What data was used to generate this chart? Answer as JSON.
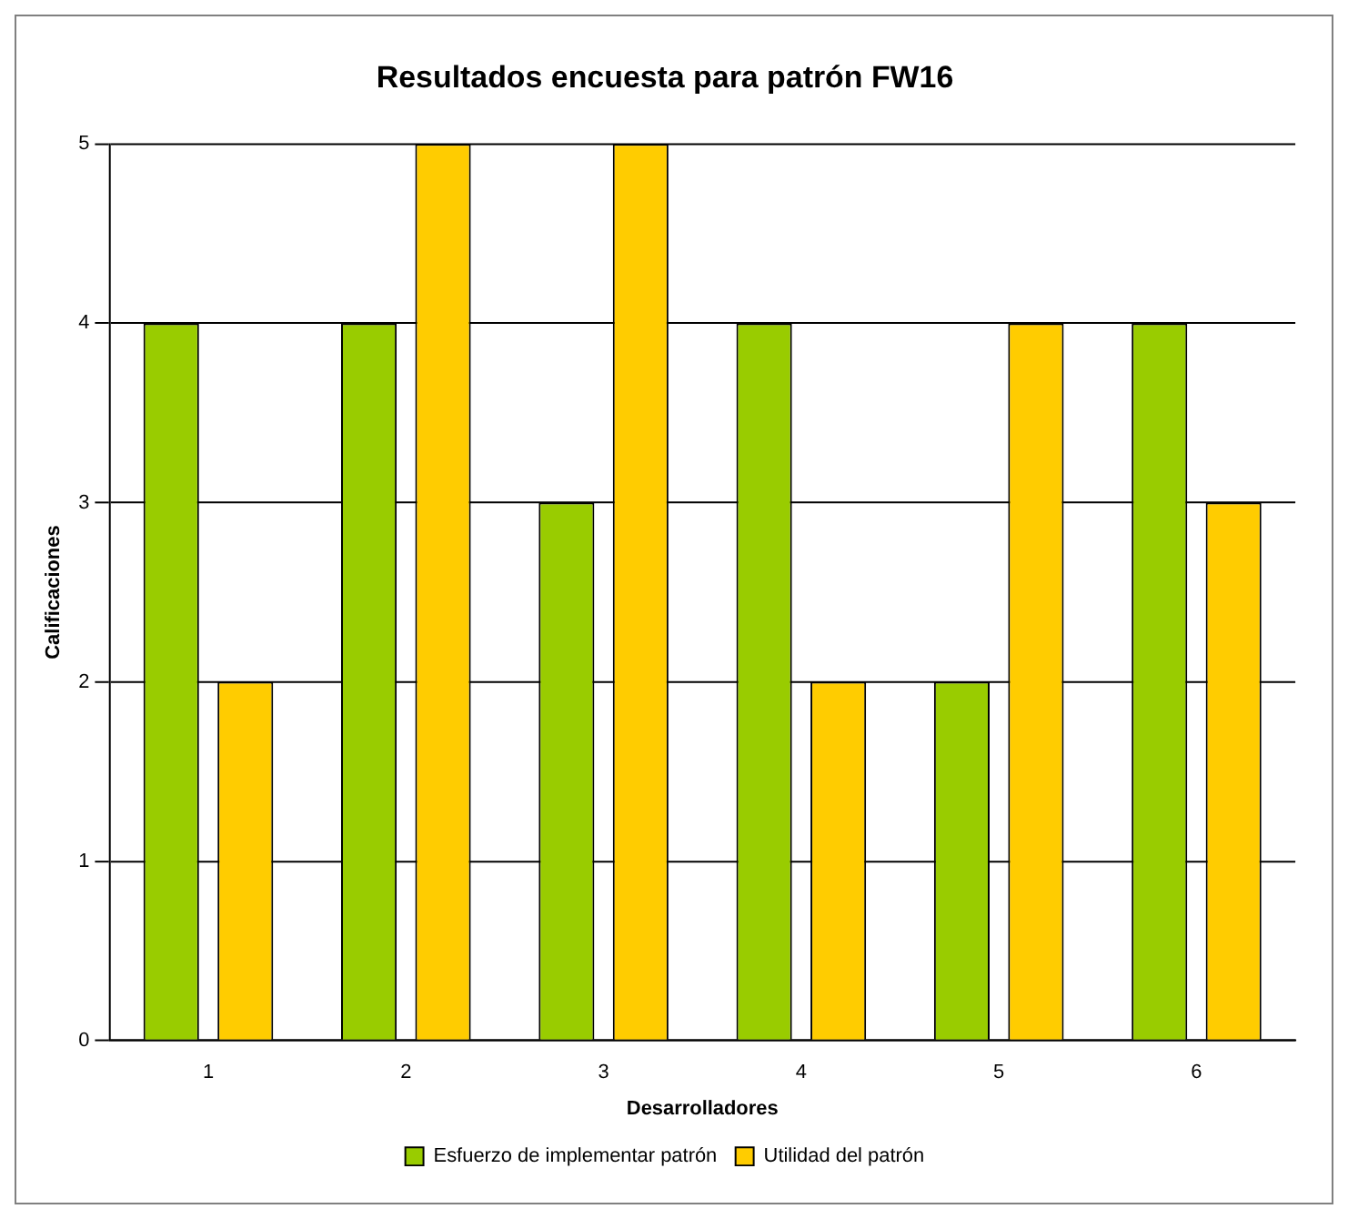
{
  "chart_data": {
    "type": "bar",
    "title": "Resultados encuesta para patrón FW16",
    "xlabel": "Desarrolladores",
    "ylabel": "Calificaciones",
    "categories": [
      "1",
      "2",
      "3",
      "4",
      "5",
      "6"
    ],
    "series": [
      {
        "name": "Esfuerzo de implementar patrón",
        "color": "#99cc00",
        "values": [
          4,
          4,
          3,
          4,
          2,
          4
        ]
      },
      {
        "name": "Utilidad del patrón",
        "color": "#ffcc00",
        "values": [
          2,
          5,
          5,
          2,
          4,
          3
        ]
      }
    ],
    "ylim": [
      0,
      5
    ],
    "yticks": [
      0,
      1,
      2,
      3,
      4,
      5
    ],
    "grid": "y",
    "legend": "bottom"
  }
}
